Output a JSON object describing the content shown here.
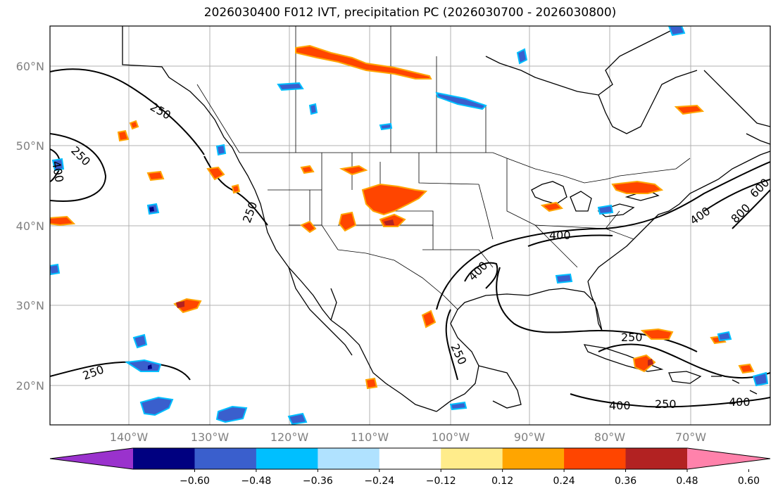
{
  "title": "2026030400 F012 IVT, precipitation PC (2026030700 - 2026030800)",
  "map": {
    "lon_range": [
      -150,
      -61
    ],
    "lat_range": [
      15,
      65
    ],
    "lat_labels": [
      "60°N",
      "50°N",
      "40°N",
      "30°N",
      "20°N"
    ],
    "lon_labels": [
      "140°W",
      "130°W",
      "120°W",
      "110°W",
      "100°W",
      "90°W",
      "80°W",
      "70°W"
    ],
    "gridlines": true,
    "ivt_contour_labels": [
      "250",
      "250",
      "400",
      "250",
      "250",
      "400",
      "400",
      "400",
      "800",
      "600",
      "250",
      "250",
      "400",
      "250",
      "400"
    ]
  },
  "colorbar": {
    "ticks": [
      "−0.60",
      "−0.48",
      "−0.36",
      "−0.24",
      "−0.12",
      "0.12",
      "0.24",
      "0.36",
      "0.48",
      "0.60"
    ],
    "colors": [
      "#9a32cd",
      "#000080",
      "#3a5fcd",
      "#00bfff",
      "#b0e2ff",
      "#ffffff",
      "#ffec8b",
      "#ffa500",
      "#ff4500",
      "#b22222",
      "#ff82ab"
    ],
    "extend": "both"
  }
}
